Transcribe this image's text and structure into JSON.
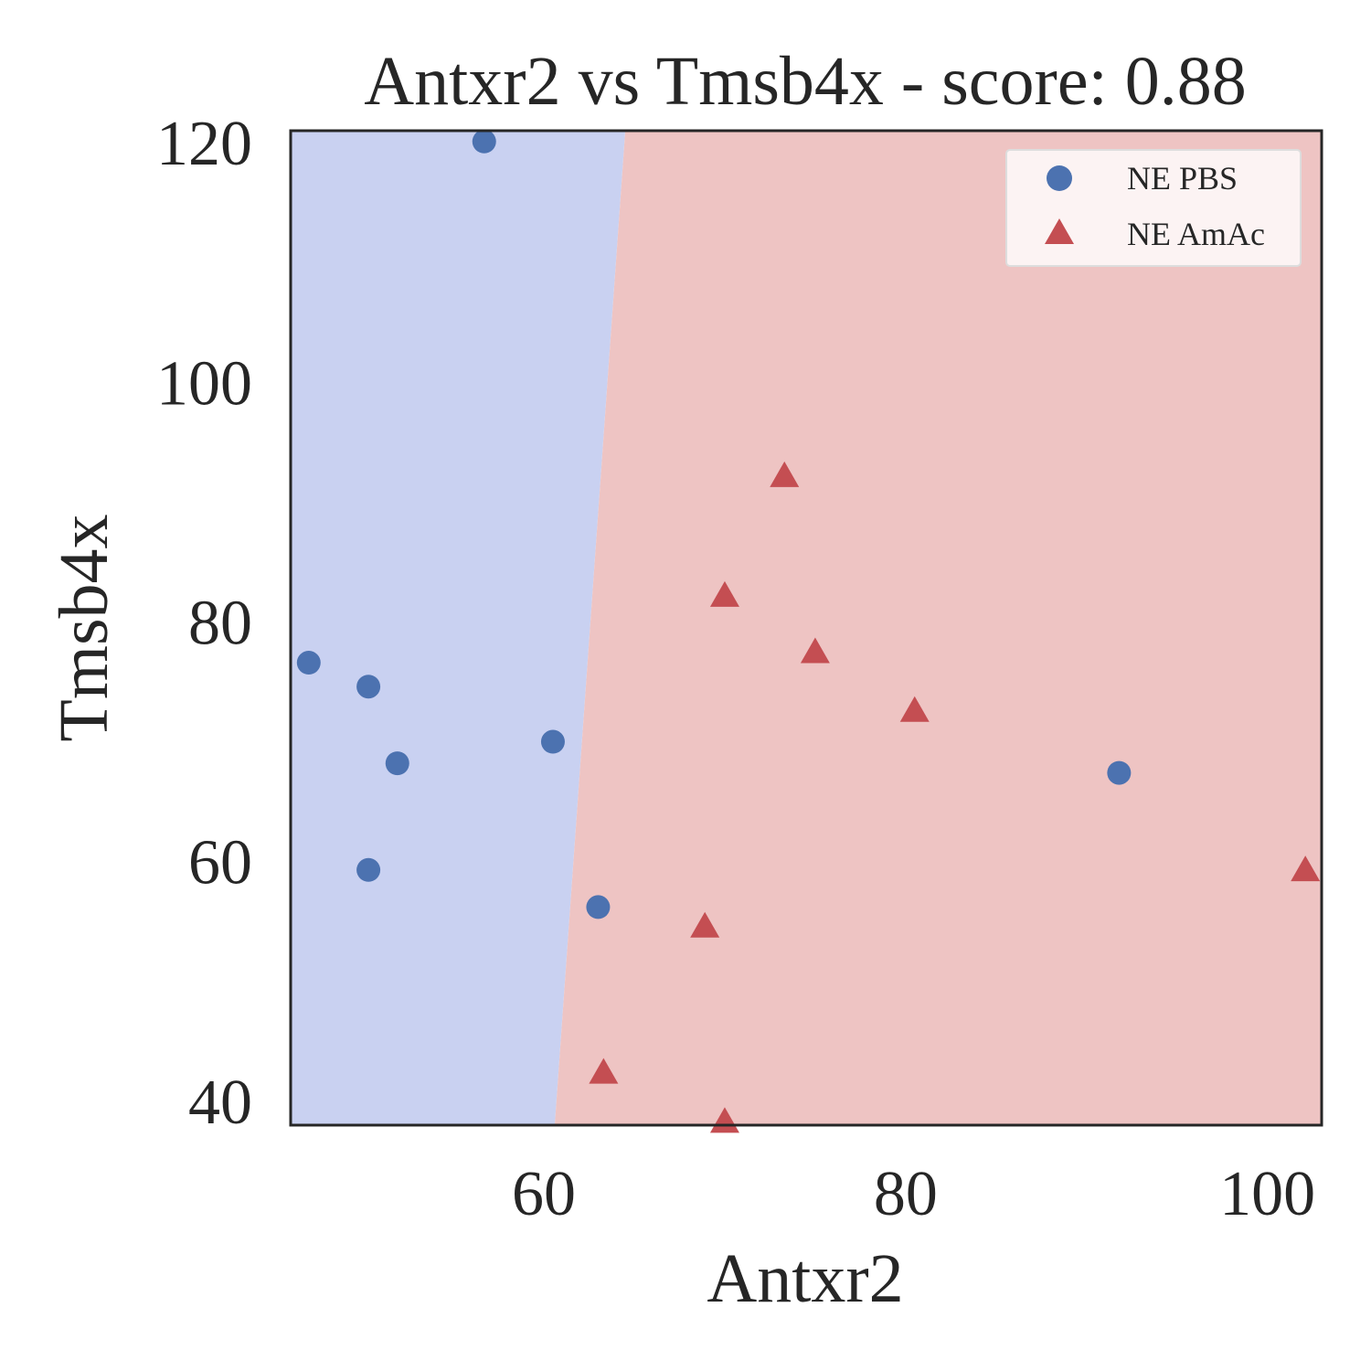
{
  "chart_data": {
    "type": "scatter",
    "title": "Antxr2 vs Tmsb4x - score: 0.88",
    "xlabel": "Antxr2",
    "ylabel": "Tmsb4x",
    "xlim": [
      46,
      103
    ],
    "ylim": [
      38,
      121
    ],
    "xticks": [
      60,
      80,
      100
    ],
    "yticks": [
      40,
      60,
      80,
      100,
      120
    ],
    "grid": false,
    "legend_position": "top-right",
    "decision_boundary": {
      "points": [
        [
          64.5,
          121
        ],
        [
          60.6,
          38
        ]
      ],
      "left_class": "NE PBS",
      "right_class": "NE AmAc",
      "left_color": "#c9d1f1",
      "right_color": "#eec4c3"
    },
    "series": [
      {
        "name": "NE PBS",
        "marker": "circle",
        "color": "#4c72b0",
        "points": [
          [
            56.7,
            120.1
          ],
          [
            47.0,
            76.6
          ],
          [
            50.3,
            74.6
          ],
          [
            51.9,
            68.2
          ],
          [
            50.3,
            59.3
          ],
          [
            60.5,
            70.0
          ],
          [
            63.0,
            56.2
          ],
          [
            91.8,
            67.4
          ]
        ]
      },
      {
        "name": "NE AmAc",
        "marker": "triangle",
        "color": "#c44e52",
        "points": [
          [
            73.3,
            92.1
          ],
          [
            70.0,
            82.1
          ],
          [
            75.0,
            77.4
          ],
          [
            80.5,
            72.5
          ],
          [
            68.9,
            54.5
          ],
          [
            63.3,
            42.3
          ],
          [
            70.0,
            38.2
          ],
          [
            102.1,
            59.2
          ]
        ]
      }
    ]
  }
}
